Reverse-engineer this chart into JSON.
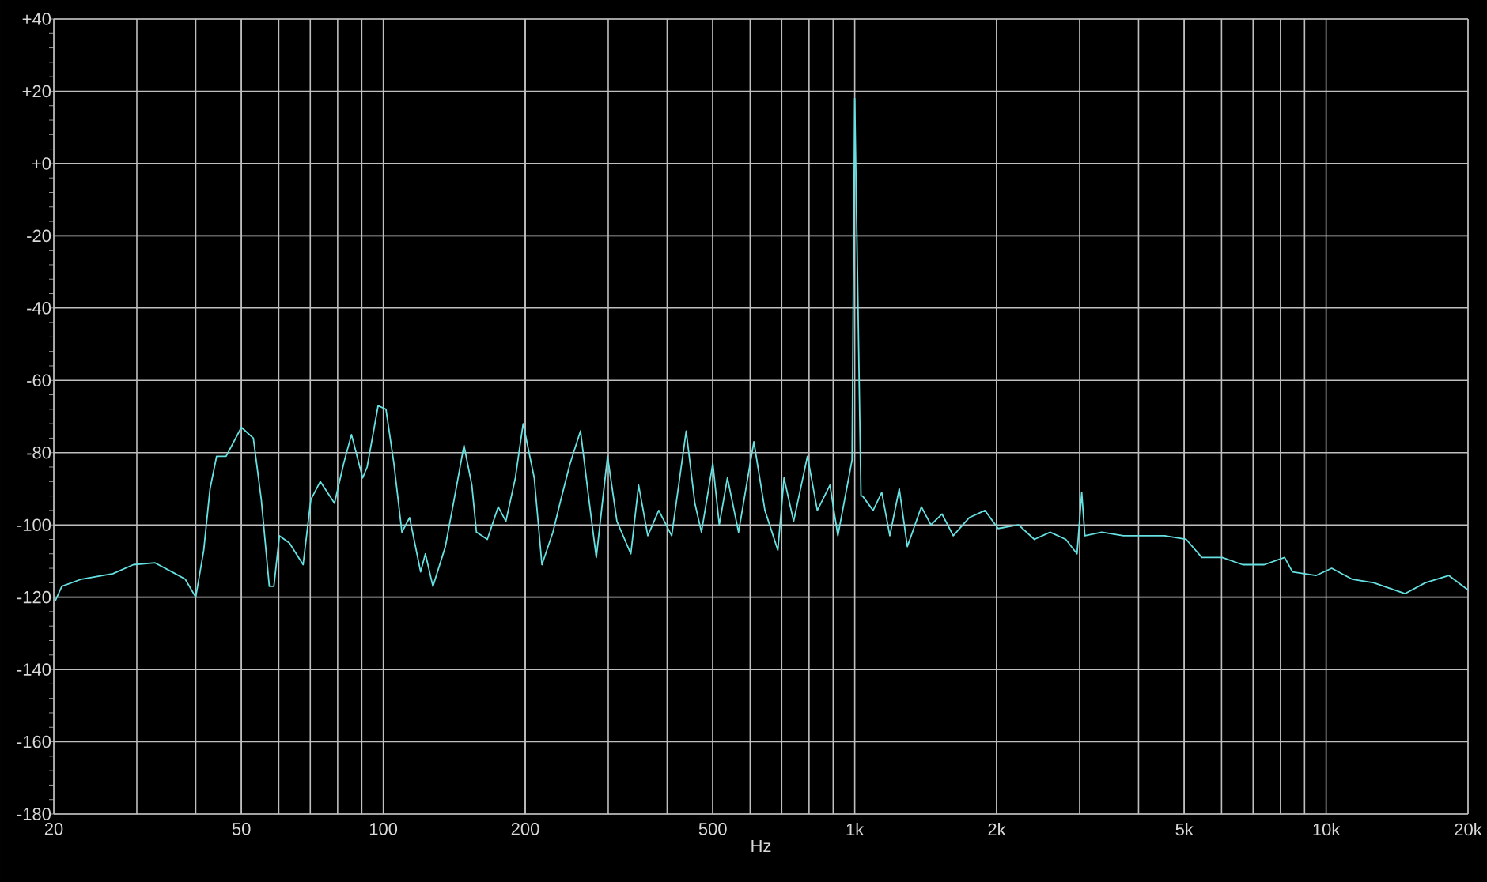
{
  "chart_data": {
    "type": "line",
    "xlabel": "Hz",
    "log": "x",
    "grid": true,
    "color": "#66e0e0",
    "xlim": [
      20,
      20000
    ],
    "ylim": [
      -180,
      40
    ],
    "xticks": [
      {
        "value": 20,
        "label": "20"
      },
      {
        "value": 50,
        "label": "50"
      },
      {
        "value": 100,
        "label": "100"
      },
      {
        "value": 200,
        "label": "200"
      },
      {
        "value": 500,
        "label": "500"
      },
      {
        "value": 1000,
        "label": "1k"
      },
      {
        "value": 2000,
        "label": "2k"
      },
      {
        "value": 5000,
        "label": "5k"
      },
      {
        "value": 10000,
        "label": "10k"
      },
      {
        "value": 20000,
        "label": "20k"
      }
    ],
    "yticks": [
      {
        "value": 40,
        "label": "+40"
      },
      {
        "value": 20,
        "label": "+20"
      },
      {
        "value": 0,
        "label": "+0"
      },
      {
        "value": -20,
        "label": "-20"
      },
      {
        "value": -40,
        "label": "-40"
      },
      {
        "value": -60,
        "label": "-60"
      },
      {
        "value": -80,
        "label": "-80"
      },
      {
        "value": -100,
        "label": "-100"
      },
      {
        "value": -120,
        "label": "-120"
      },
      {
        "value": -140,
        "label": "-140"
      },
      {
        "value": -160,
        "label": "-160"
      },
      {
        "value": -180,
        "label": "-180"
      }
    ],
    "x": [
      20.15,
      20.8,
      22.9,
      26.7,
      29.5,
      32.8,
      36.2,
      38,
      40,
      41.6,
      42.9,
      44.3,
      46.4,
      50,
      53,
      55.1,
      57.3,
      58.6,
      60.2,
      63.2,
      67.6,
      70.2,
      73.5,
      78.8,
      82.4,
      85.6,
      90.4,
      92.4,
      97.5,
      101.3,
      105.3,
      109.5,
      113.7,
      120,
      122.8,
      127.4,
      135.4,
      142.7,
      148.3,
      154.1,
      157.6,
      166.2,
      175.3,
      182,
      190.6,
      198,
      209,
      217,
      229,
      238,
      249,
      262,
      273,
      283,
      299,
      313,
      335,
      348,
      364,
      384,
      409,
      439,
      458,
      473,
      500,
      516,
      537,
      567,
      611,
      645,
      687,
      708,
      742,
      794,
      833,
      886,
      921,
      971,
      987,
      1000,
      1031,
      1039,
      1094,
      1141,
      1187,
      1243,
      1293,
      1385,
      1451,
      1532,
      1618,
      1749,
      1889,
      2014,
      2226,
      2405,
      2597,
      2804,
      2962,
      3031,
      3078,
      3343,
      3716,
      4012,
      4540,
      5048,
      5450,
      6019,
      6651,
      7391,
      8165,
      8486,
      9514,
      10276,
      11344,
      12620,
      14702,
      16230,
      18219,
      20000
    ],
    "values": [
      -121,
      -117,
      -115,
      -113.5,
      -111,
      -110.5,
      -113.5,
      -115,
      -120,
      -107,
      -90,
      -81,
      -81,
      -73,
      -76,
      -93,
      -117,
      -117,
      -103,
      -105,
      -111,
      -93,
      -88,
      -94,
      -83,
      -75,
      -87,
      -84,
      -67,
      -68,
      -83,
      -102,
      -98,
      -113,
      -108,
      -117,
      -106,
      -90,
      -78,
      -89,
      -102,
      -104,
      -95,
      -99,
      -87,
      -72,
      -87,
      -111,
      -102,
      -93,
      -83,
      -74,
      -93,
      -109,
      -81,
      -99,
      -108,
      -89,
      -103,
      -96,
      -103,
      -74,
      -94,
      -102,
      -83,
      -100,
      -87,
      -102,
      -77,
      -96,
      -107,
      -87,
      -99,
      -81,
      -96,
      -89,
      -103,
      -87,
      -82,
      18,
      -92,
      -92,
      -96,
      -91,
      -103,
      -90,
      -106,
      -95,
      -100,
      -97,
      -103,
      -98,
      -96,
      -101,
      -100,
      -104,
      -102,
      -104,
      -108,
      -91,
      -103,
      -102,
      -103,
      -103,
      -103,
      -104,
      -109,
      -109,
      -111,
      -111,
      -109,
      -113,
      -114,
      -112,
      -115,
      -116,
      -119,
      -116,
      -114,
      -118
    ]
  }
}
